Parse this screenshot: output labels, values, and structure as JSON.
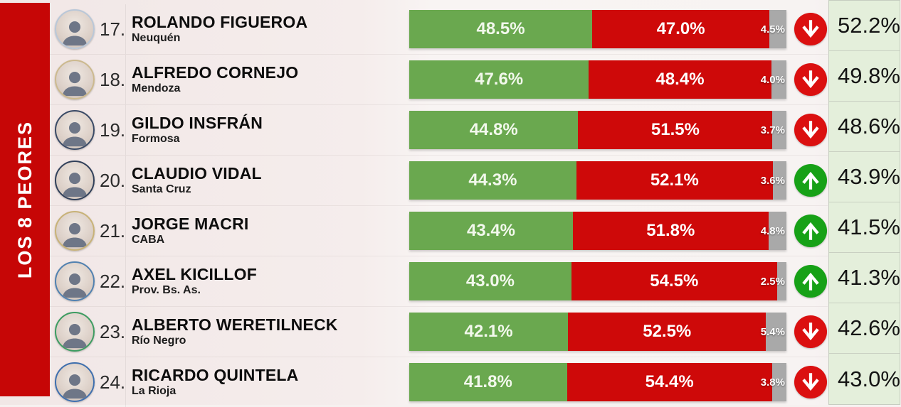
{
  "banner": {
    "label": "LOS 8 PEORES",
    "color": "#c60606"
  },
  "colors": {
    "banner_red": "#c60606",
    "bar_green": "#6aa84f",
    "bar_red": "#ce0909",
    "bar_gray": "#a9a9a9",
    "arrow_up_bg": "#17a117",
    "arrow_down_bg": "#db1010",
    "result_bg": "#e4efdb"
  },
  "rows": [
    {
      "rank_label": "17.",
      "name": "ROLANDO FIGUEROA",
      "region": "Neuquén",
      "green_label": "48.5%",
      "red_label": "47.0%",
      "gray_label": "4.5%",
      "green_pct": 48.5,
      "red_pct": 47.0,
      "gray_pct": 4.5,
      "trend": "down",
      "result_label": "52.2%",
      "ring": "#b9c7d8"
    },
    {
      "rank_label": "18.",
      "name": "ALFREDO CORNEJO",
      "region": "Mendoza",
      "green_label": "47.6%",
      "red_label": "48.4%",
      "gray_label": "4.0%",
      "green_pct": 47.6,
      "red_pct": 48.4,
      "gray_pct": 4.0,
      "trend": "down",
      "result_label": "49.8%",
      "ring": "#ccb98e"
    },
    {
      "rank_label": "19.",
      "name": "GILDO INSFRÁN",
      "region": "Formosa",
      "green_label": "44.8%",
      "red_label": "51.5%",
      "gray_label": "3.7%",
      "green_pct": 44.8,
      "red_pct": 51.5,
      "gray_pct": 3.7,
      "trend": "down",
      "result_label": "48.6%",
      "ring": "#3a4a66"
    },
    {
      "rank_label": "20.",
      "name": "CLAUDIO VIDAL",
      "region": "Santa Cruz",
      "green_label": "44.3%",
      "red_label": "52.1%",
      "gray_label": "3.6%",
      "green_pct": 44.3,
      "red_pct": 52.1,
      "gray_pct": 3.6,
      "trend": "up",
      "result_label": "43.9%",
      "ring": "#31405a"
    },
    {
      "rank_label": "21.",
      "name": "JORGE MACRI",
      "region": "CABA",
      "green_label": "43.4%",
      "red_label": "51.8%",
      "gray_label": "4.8%",
      "green_pct": 43.4,
      "red_pct": 51.8,
      "gray_pct": 4.8,
      "trend": "up",
      "result_label": "41.5%",
      "ring": "#c8b277"
    },
    {
      "rank_label": "22.",
      "name": "AXEL KICILLOF",
      "region": "Prov. Bs. As.",
      "green_label": "43.0%",
      "red_label": "54.5%",
      "gray_label": "2.5%",
      "green_pct": 43.0,
      "red_pct": 54.5,
      "gray_pct": 2.5,
      "trend": "up",
      "result_label": "41.3%",
      "ring": "#5181b0"
    },
    {
      "rank_label": "23.",
      "name": "ALBERTO WERETILNECK",
      "region": "Río Negro",
      "green_label": "42.1%",
      "red_label": "52.5%",
      "gray_label": "5.4%",
      "green_pct": 42.1,
      "red_pct": 52.5,
      "gray_pct": 5.4,
      "trend": "down",
      "result_label": "42.6%",
      "ring": "#3d9c61"
    },
    {
      "rank_label": "24.",
      "name": "RICARDO QUINTELA",
      "region": "La Rioja",
      "green_label": "41.8%",
      "red_label": "54.4%",
      "gray_label": "3.8%",
      "green_pct": 41.8,
      "red_pct": 54.4,
      "gray_pct": 3.8,
      "trend": "down",
      "result_label": "43.0%",
      "ring": "#3f6fae"
    }
  ],
  "chart_data": {
    "type": "bar",
    "orientation": "horizontal-stacked",
    "title": "LOS 8 PEORES",
    "categories": [
      "ROLANDO FIGUEROA (Neuquén)",
      "ALFREDO CORNEJO (Mendoza)",
      "GILDO INSFRÁN (Formosa)",
      "CLAUDIO VIDAL (Santa Cruz)",
      "JORGE MACRI (CABA)",
      "AXEL KICILLOF (Prov. Bs. As.)",
      "ALBERTO WERETILNECK (Río Negro)",
      "RICARDO QUINTELA (La Rioja)"
    ],
    "ranks": [
      17,
      18,
      19,
      20,
      21,
      22,
      23,
      24
    ],
    "series": [
      {
        "name": "positive-green",
        "color": "#6aa84f",
        "values": [
          48.5,
          47.6,
          44.8,
          44.3,
          43.4,
          43.0,
          42.1,
          41.8
        ]
      },
      {
        "name": "negative-red",
        "color": "#ce0909",
        "values": [
          47.0,
          48.4,
          51.5,
          52.1,
          51.8,
          54.5,
          52.5,
          54.4
        ]
      },
      {
        "name": "undecided-gray",
        "color": "#a9a9a9",
        "values": [
          4.5,
          4.0,
          3.7,
          3.6,
          4.8,
          2.5,
          5.4,
          3.8
        ]
      }
    ],
    "trend_arrows": [
      "down",
      "down",
      "down",
      "up",
      "up",
      "up",
      "down",
      "down"
    ],
    "side_values": [
      52.2,
      49.8,
      48.6,
      43.9,
      41.5,
      41.3,
      42.6,
      43.0
    ],
    "xlim": [
      0,
      100
    ],
    "grid": false,
    "legend": false
  }
}
